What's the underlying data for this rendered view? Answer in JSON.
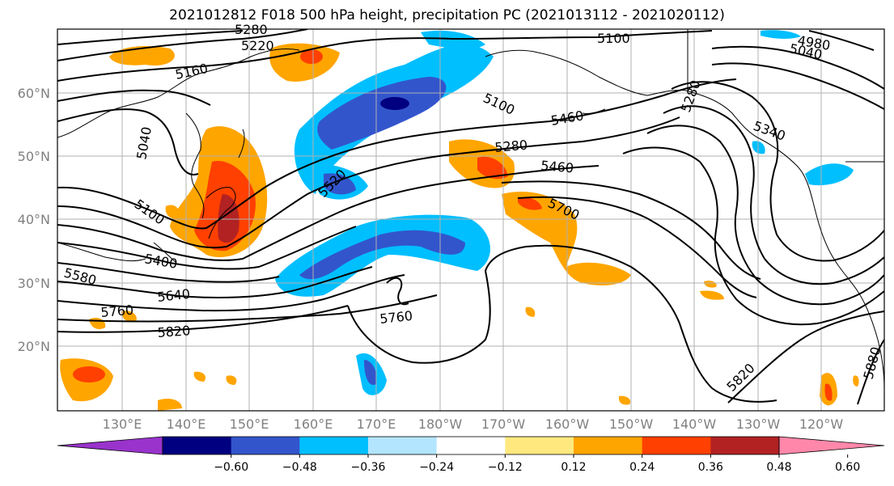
{
  "title": "2021012812 F018 500 hPa height, precipitation PC (2021013112 - 2021020112)",
  "lat_labels": [
    "60°N",
    "50°N",
    "40°N",
    "30°N",
    "20°N"
  ],
  "lon_labels": [
    "130°E",
    "140°E",
    "150°E",
    "160°E",
    "170°E",
    "180°W",
    "170°W",
    "160°W",
    "150°W",
    "140°W",
    "130°W",
    "120°W"
  ],
  "contour_labels": [
    "5280",
    "5220",
    "5160",
    "5100",
    "5040",
    "5100",
    "5400",
    "5580",
    "5640",
    "5760",
    "5820",
    "5520",
    "5760",
    "5100",
    "5460",
    "5280",
    "5460",
    "5700",
    "5280",
    "5340",
    "4980",
    "5040",
    "5820",
    "5880"
  ],
  "colorbar": {
    "colors": [
      "#9933cc",
      "#000080",
      "#3355cc",
      "#00bfff",
      "#b3e5ff",
      "#ffffff",
      "#ffe97f",
      "#ffa500",
      "#ff4000",
      "#b22222",
      "#ff88aa"
    ],
    "tick_labels": [
      "−0.60",
      "−0.48",
      "−0.36",
      "−0.24",
      "−0.12",
      "0.12",
      "0.24",
      "0.36",
      "0.48",
      "0.60"
    ]
  }
}
